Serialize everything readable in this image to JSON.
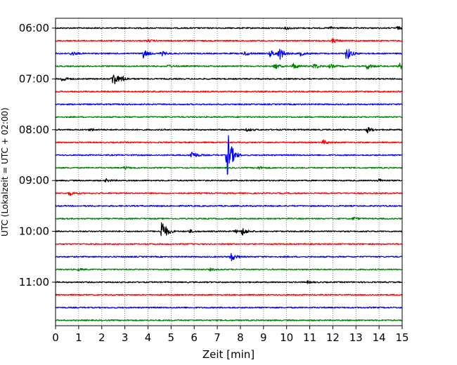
{
  "chart_data": {
    "type": "line",
    "title": "",
    "xlabel": "Zeit  [min]",
    "ylabel": "UTC (Lokalzeit = UTC + 02:00)",
    "xlim": [
      0,
      15
    ],
    "x_ticks": [
      0,
      1,
      2,
      3,
      4,
      5,
      6,
      7,
      8,
      9,
      10,
      11,
      12,
      13,
      14,
      15
    ],
    "y_tick_labels": [
      "06:00",
      "07:00",
      "08:00",
      "09:00",
      "10:00",
      "11:00"
    ],
    "y_tick_trace_index": [
      0,
      4,
      8,
      12,
      16,
      20
    ],
    "trace_interval_min": 15,
    "vertical_grid": true,
    "color_cycle": [
      "#000000",
      "#ff0000",
      "#0000ff",
      "#008000"
    ],
    "traces": [
      {
        "start": "06:00",
        "events": [
          {
            "t": 10.0,
            "a": 2
          },
          {
            "t": 11.9,
            "a": 2
          },
          {
            "t": 14.8,
            "a": 2
          }
        ]
      },
      {
        "start": "06:15",
        "events": [
          {
            "t": 4.0,
            "a": 1.5
          },
          {
            "t": 12.0,
            "a": 3
          }
        ]
      },
      {
        "start": "06:30",
        "events": [
          {
            "t": 0.7,
            "a": 3
          },
          {
            "t": 3.8,
            "a": 6
          },
          {
            "t": 4.6,
            "a": 3
          },
          {
            "t": 8.2,
            "a": 3
          },
          {
            "t": 9.3,
            "a": 5
          },
          {
            "t": 9.7,
            "a": 8
          },
          {
            "t": 10.6,
            "a": 3
          },
          {
            "t": 12.6,
            "a": 10
          }
        ]
      },
      {
        "start": "06:45",
        "events": [
          {
            "t": 4.9,
            "a": 2
          },
          {
            "t": 9.5,
            "a": 4
          },
          {
            "t": 10.3,
            "a": 4
          },
          {
            "t": 11.2,
            "a": 4
          },
          {
            "t": 11.9,
            "a": 3
          },
          {
            "t": 13.5,
            "a": 4
          },
          {
            "t": 14.9,
            "a": 4
          }
        ]
      },
      {
        "start": "07:00",
        "events": [
          {
            "t": 0.3,
            "a": 4
          },
          {
            "t": 2.5,
            "a": 11
          },
          {
            "t": 2.9,
            "a": 3
          }
        ]
      },
      {
        "start": "07:15",
        "events": []
      },
      {
        "start": "07:30",
        "events": []
      },
      {
        "start": "07:45",
        "events": []
      },
      {
        "start": "08:00",
        "events": [
          {
            "t": 1.5,
            "a": 1.5
          },
          {
            "t": 8.3,
            "a": 2
          },
          {
            "t": 13.5,
            "a": 4
          }
        ]
      },
      {
        "start": "08:15",
        "events": [
          {
            "t": 11.6,
            "a": 3
          }
        ]
      },
      {
        "start": "08:30",
        "events": [
          {
            "t": 5.9,
            "a": 6
          },
          {
            "t": 7.45,
            "a": 34
          }
        ]
      },
      {
        "start": "08:45",
        "events": [
          {
            "t": 3.0,
            "a": 2
          },
          {
            "t": 8.8,
            "a": 2
          }
        ]
      },
      {
        "start": "09:00",
        "events": [
          {
            "t": 2.2,
            "a": 2
          },
          {
            "t": 14.0,
            "a": 2
          }
        ]
      },
      {
        "start": "09:15",
        "events": [
          {
            "t": 0.6,
            "a": 3
          }
        ]
      },
      {
        "start": "09:30",
        "events": []
      },
      {
        "start": "09:45",
        "events": [
          {
            "t": 12.9,
            "a": 2
          }
        ]
      },
      {
        "start": "10:00",
        "events": [
          {
            "t": 4.6,
            "a": 18
          },
          {
            "t": 5.8,
            "a": 2
          },
          {
            "t": 7.8,
            "a": 2
          },
          {
            "t": 8.1,
            "a": 5
          }
        ]
      },
      {
        "start": "10:15",
        "events": []
      },
      {
        "start": "10:30",
        "events": [
          {
            "t": 7.6,
            "a": 6
          }
        ]
      },
      {
        "start": "10:45",
        "events": [
          {
            "t": 1.0,
            "a": 1.5
          },
          {
            "t": 6.7,
            "a": 1.5
          }
        ]
      },
      {
        "start": "11:00",
        "events": [
          {
            "t": 10.9,
            "a": 1.5
          }
        ]
      },
      {
        "start": "11:15",
        "events": []
      },
      {
        "start": "11:30",
        "events": []
      },
      {
        "start": "11:45",
        "events": []
      }
    ]
  }
}
